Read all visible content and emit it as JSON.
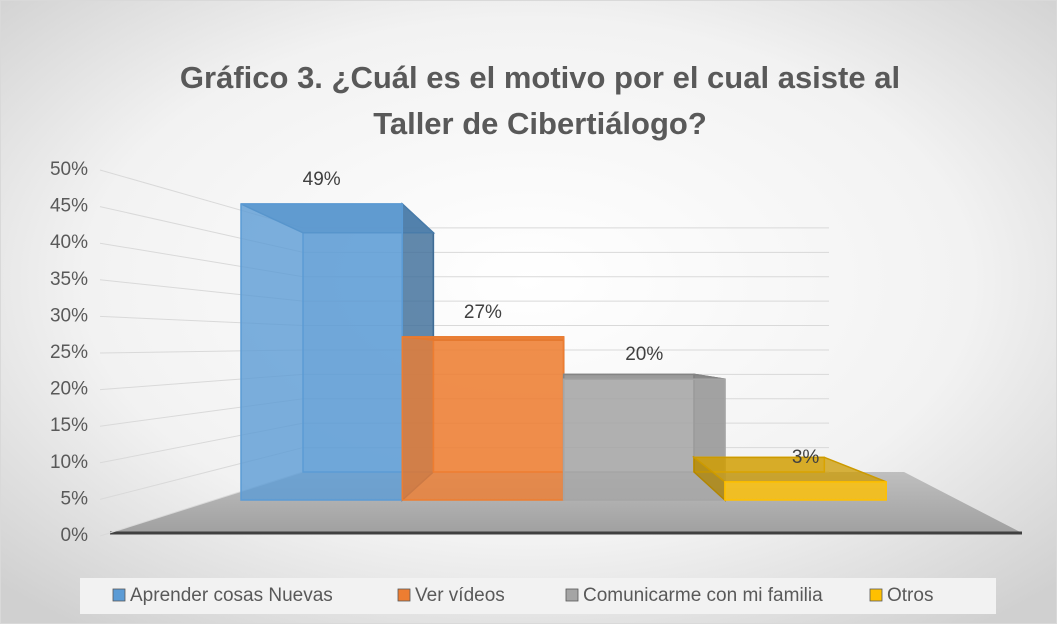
{
  "chart_data": {
    "type": "bar3d",
    "title": [
      "Gráfico 3. ¿Cuál es el motivo por el cual asiste al",
      "Taller de Cibertiálogo?"
    ],
    "categories": [
      "Aprender cosas Nuevas",
      "Ver vídeos",
      "Comunicarme con mi familia",
      "Otros"
    ],
    "values": [
      49,
      27,
      20,
      3
    ],
    "value_labels": [
      "49%",
      "27%",
      "20%",
      "3%"
    ],
    "colors": [
      "#5b9bd5",
      "#ed7d31",
      "#a5a5a5",
      "#ffc000"
    ],
    "ylim": [
      0,
      50
    ],
    "yticks": [
      {
        "value": 0,
        "label": "0%"
      },
      {
        "value": 5,
        "label": "5%"
      },
      {
        "value": 10,
        "label": "10%"
      },
      {
        "value": 15,
        "label": "15%"
      },
      {
        "value": 20,
        "label": "20%"
      },
      {
        "value": 25,
        "label": "25%"
      },
      {
        "value": 30,
        "label": "30%"
      },
      {
        "value": 35,
        "label": "35%"
      },
      {
        "value": 40,
        "label": "40%"
      },
      {
        "value": 45,
        "label": "45%"
      },
      {
        "value": 50,
        "label": "50%"
      }
    ],
    "grid": true,
    "legend": "bottom"
  }
}
